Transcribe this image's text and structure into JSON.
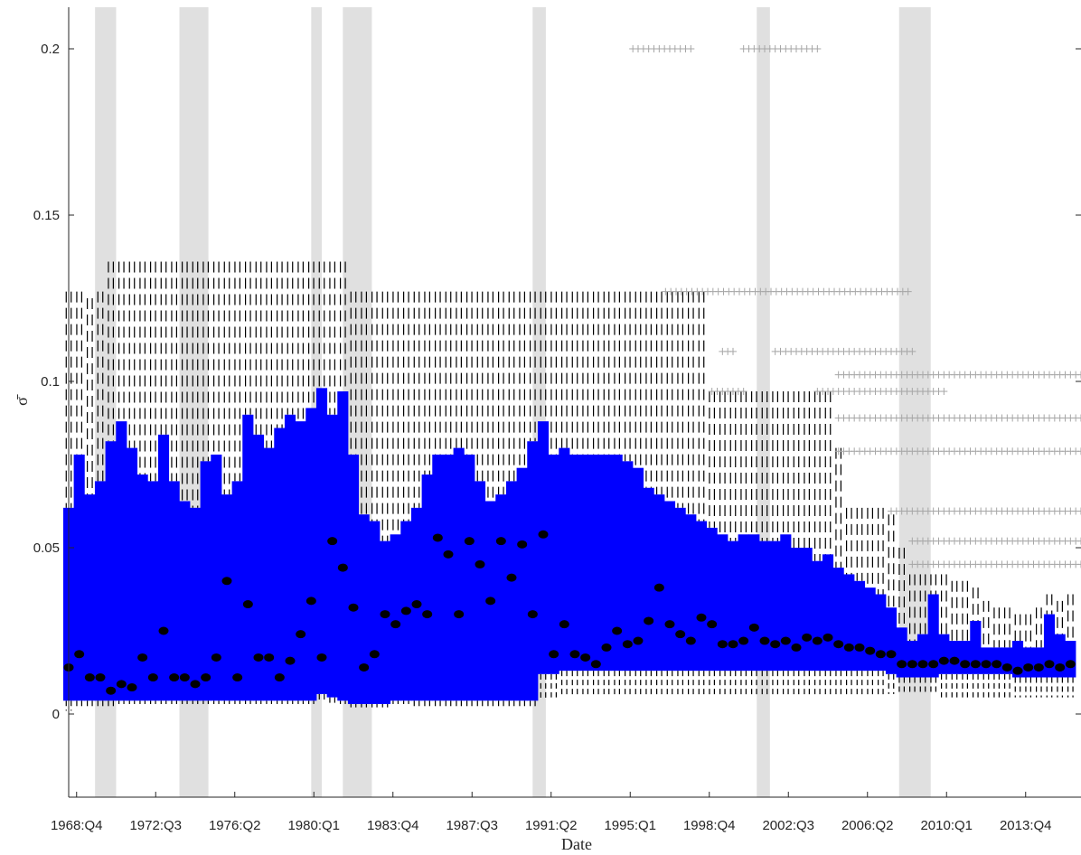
{
  "chart_data": {
    "type": "box",
    "xlabel": "Date",
    "ylabel": "σ̄",
    "ylim": [
      -0.025,
      0.2125
    ],
    "grid": false,
    "legend": "none",
    "colors": {
      "box_fill": "#0000FF",
      "median": "#000000",
      "whisker": "#000000",
      "outlier": "#A6A6A6",
      "recession": "#E0E0E0"
    },
    "x_range": [
      1968.5,
      2016.5
    ],
    "x_ticks": [
      {
        "label": "1968:Q4",
        "x": 1968.875
      },
      {
        "label": "1972:Q3",
        "x": 1972.625
      },
      {
        "label": "1976:Q2",
        "x": 1976.375
      },
      {
        "label": "1980:Q1",
        "x": 1980.125
      },
      {
        "label": "1983:Q4",
        "x": 1983.875
      },
      {
        "label": "1987:Q3",
        "x": 1987.625
      },
      {
        "label": "1991:Q2",
        "x": 1991.375
      },
      {
        "label": "1995:Q1",
        "x": 1995.125
      },
      {
        "label": "1998:Q4",
        "x": 1998.875
      },
      {
        "label": "2002:Q3",
        "x": 2002.625
      },
      {
        "label": "2006:Q2",
        "x": 2006.375
      },
      {
        "label": "2010:Q1",
        "x": 2010.125
      },
      {
        "label": "2013:Q4",
        "x": 2013.875
      }
    ],
    "y_ticks": [
      {
        "label": "0",
        "y": 0
      },
      {
        "label": "0.05",
        "y": 0.05
      },
      {
        "label": "0.1",
        "y": 0.1
      },
      {
        "label": "0.15",
        "y": 0.15
      },
      {
        "label": "0.2",
        "y": 0.2
      }
    ],
    "recessions": [
      [
        1969.75,
        1970.75
      ],
      [
        1973.75,
        1975.125
      ],
      [
        1980.0,
        1980.5
      ],
      [
        1981.5,
        1982.875
      ],
      [
        1990.5,
        1991.125
      ],
      [
        2001.125,
        2001.75
      ],
      [
        2007.875,
        2009.375
      ]
    ],
    "series_points": [
      {
        "x": 1968.5,
        "median": 0.014,
        "q1": 0.004,
        "q3": 0.062,
        "lo": 0.001,
        "hi": 0.127
      },
      {
        "x": 1969.0,
        "median": 0.018,
        "q1": 0.004,
        "q3": 0.078,
        "lo": 0.002,
        "hi": 0.127
      },
      {
        "x": 1969.5,
        "median": 0.011,
        "q1": 0.004,
        "q3": 0.066,
        "lo": 0.002,
        "hi": 0.125
      },
      {
        "x": 1970.0,
        "median": 0.011,
        "q1": 0.004,
        "q3": 0.07,
        "lo": 0.002,
        "hi": 0.127
      },
      {
        "x": 1970.5,
        "median": 0.007,
        "q1": 0.004,
        "q3": 0.082,
        "lo": 0.002,
        "hi": 0.136
      },
      {
        "x": 1971.0,
        "median": 0.009,
        "q1": 0.004,
        "q3": 0.088,
        "lo": 0.003,
        "hi": 0.136
      },
      {
        "x": 1971.5,
        "median": 0.008,
        "q1": 0.004,
        "q3": 0.08,
        "lo": 0.003,
        "hi": 0.136
      },
      {
        "x": 1972.0,
        "median": 0.017,
        "q1": 0.004,
        "q3": 0.072,
        "lo": 0.003,
        "hi": 0.136
      },
      {
        "x": 1972.5,
        "median": 0.011,
        "q1": 0.004,
        "q3": 0.07,
        "lo": 0.003,
        "hi": 0.136
      },
      {
        "x": 1973.0,
        "median": 0.025,
        "q1": 0.004,
        "q3": 0.084,
        "lo": 0.003,
        "hi": 0.136
      },
      {
        "x": 1973.5,
        "median": 0.011,
        "q1": 0.004,
        "q3": 0.07,
        "lo": 0.003,
        "hi": 0.136
      },
      {
        "x": 1974.0,
        "median": 0.011,
        "q1": 0.004,
        "q3": 0.064,
        "lo": 0.003,
        "hi": 0.136
      },
      {
        "x": 1974.5,
        "median": 0.009,
        "q1": 0.004,
        "q3": 0.062,
        "lo": 0.003,
        "hi": 0.136
      },
      {
        "x": 1975.0,
        "median": 0.011,
        "q1": 0.004,
        "q3": 0.076,
        "lo": 0.003,
        "hi": 0.136
      },
      {
        "x": 1975.5,
        "median": 0.017,
        "q1": 0.004,
        "q3": 0.078,
        "lo": 0.003,
        "hi": 0.136
      },
      {
        "x": 1976.0,
        "median": 0.04,
        "q1": 0.004,
        "q3": 0.066,
        "lo": 0.003,
        "hi": 0.136
      },
      {
        "x": 1976.5,
        "median": 0.011,
        "q1": 0.004,
        "q3": 0.07,
        "lo": 0.003,
        "hi": 0.136
      },
      {
        "x": 1977.0,
        "median": 0.033,
        "q1": 0.004,
        "q3": 0.09,
        "lo": 0.003,
        "hi": 0.136
      },
      {
        "x": 1977.5,
        "median": 0.017,
        "q1": 0.004,
        "q3": 0.084,
        "lo": 0.003,
        "hi": 0.136
      },
      {
        "x": 1978.0,
        "median": 0.017,
        "q1": 0.004,
        "q3": 0.08,
        "lo": 0.003,
        "hi": 0.136
      },
      {
        "x": 1978.5,
        "median": 0.011,
        "q1": 0.004,
        "q3": 0.086,
        "lo": 0.003,
        "hi": 0.136
      },
      {
        "x": 1979.0,
        "median": 0.016,
        "q1": 0.004,
        "q3": 0.09,
        "lo": 0.003,
        "hi": 0.136
      },
      {
        "x": 1979.5,
        "median": 0.024,
        "q1": 0.004,
        "q3": 0.088,
        "lo": 0.003,
        "hi": 0.136
      },
      {
        "x": 1980.0,
        "median": 0.034,
        "q1": 0.004,
        "q3": 0.092,
        "lo": 0.003,
        "hi": 0.136
      },
      {
        "x": 1980.5,
        "median": 0.017,
        "q1": 0.006,
        "q3": 0.098,
        "lo": 0.004,
        "hi": 0.136
      },
      {
        "x": 1981.0,
        "median": 0.052,
        "q1": 0.005,
        "q3": 0.09,
        "lo": 0.003,
        "hi": 0.136
      },
      {
        "x": 1981.5,
        "median": 0.044,
        "q1": 0.004,
        "q3": 0.097,
        "lo": 0.003,
        "hi": 0.136
      },
      {
        "x": 1982.0,
        "median": 0.032,
        "q1": 0.003,
        "q3": 0.078,
        "lo": 0.002,
        "hi": 0.127
      },
      {
        "x": 1982.5,
        "median": 0.014,
        "q1": 0.003,
        "q3": 0.06,
        "lo": 0.002,
        "hi": 0.127
      },
      {
        "x": 1983.0,
        "median": 0.018,
        "q1": 0.003,
        "q3": 0.058,
        "lo": 0.002,
        "hi": 0.127
      },
      {
        "x": 1983.5,
        "median": 0.03,
        "q1": 0.003,
        "q3": 0.052,
        "lo": 0.002,
        "hi": 0.127
      },
      {
        "x": 1984.0,
        "median": 0.027,
        "q1": 0.004,
        "q3": 0.054,
        "lo": 0.003,
        "hi": 0.127
      },
      {
        "x": 1984.5,
        "median": 0.031,
        "q1": 0.004,
        "q3": 0.058,
        "lo": 0.003,
        "hi": 0.127
      },
      {
        "x": 1985.0,
        "median": 0.033,
        "q1": 0.004,
        "q3": 0.062,
        "lo": 0.002,
        "hi": 0.127
      },
      {
        "x": 1985.5,
        "median": 0.03,
        "q1": 0.004,
        "q3": 0.072,
        "lo": 0.002,
        "hi": 0.127
      },
      {
        "x": 1986.0,
        "median": 0.053,
        "q1": 0.004,
        "q3": 0.078,
        "lo": 0.002,
        "hi": 0.127
      },
      {
        "x": 1986.5,
        "median": 0.048,
        "q1": 0.004,
        "q3": 0.078,
        "lo": 0.002,
        "hi": 0.127
      },
      {
        "x": 1987.0,
        "median": 0.03,
        "q1": 0.004,
        "q3": 0.08,
        "lo": 0.002,
        "hi": 0.127
      },
      {
        "x": 1987.5,
        "median": 0.052,
        "q1": 0.004,
        "q3": 0.078,
        "lo": 0.002,
        "hi": 0.127
      },
      {
        "x": 1988.0,
        "median": 0.045,
        "q1": 0.004,
        "q3": 0.07,
        "lo": 0.002,
        "hi": 0.127
      },
      {
        "x": 1988.5,
        "median": 0.034,
        "q1": 0.004,
        "q3": 0.064,
        "lo": 0.002,
        "hi": 0.127
      },
      {
        "x": 1989.0,
        "median": 0.052,
        "q1": 0.004,
        "q3": 0.066,
        "lo": 0.002,
        "hi": 0.127
      },
      {
        "x": 1989.5,
        "median": 0.041,
        "q1": 0.004,
        "q3": 0.07,
        "lo": 0.002,
        "hi": 0.127
      },
      {
        "x": 1990.0,
        "median": 0.051,
        "q1": 0.004,
        "q3": 0.074,
        "lo": 0.002,
        "hi": 0.127
      },
      {
        "x": 1990.5,
        "median": 0.03,
        "q1": 0.004,
        "q3": 0.082,
        "lo": 0.002,
        "hi": 0.127
      },
      {
        "x": 1991.0,
        "median": 0.054,
        "q1": 0.012,
        "q3": 0.088,
        "lo": 0.004,
        "hi": 0.127
      },
      {
        "x": 1991.5,
        "median": 0.018,
        "q1": 0.012,
        "q3": 0.078,
        "lo": 0.005,
        "hi": 0.127
      },
      {
        "x": 1992.0,
        "median": 0.027,
        "q1": 0.013,
        "q3": 0.08,
        "lo": 0.005,
        "hi": 0.127
      },
      {
        "x": 1992.5,
        "median": 0.018,
        "q1": 0.013,
        "q3": 0.078,
        "lo": 0.005,
        "hi": 0.127
      },
      {
        "x": 1993.0,
        "median": 0.017,
        "q1": 0.013,
        "q3": 0.078,
        "lo": 0.005,
        "hi": 0.127
      },
      {
        "x": 1993.5,
        "median": 0.015,
        "q1": 0.013,
        "q3": 0.078,
        "lo": 0.005,
        "hi": 0.127
      },
      {
        "x": 1994.0,
        "median": 0.02,
        "q1": 0.013,
        "q3": 0.078,
        "lo": 0.005,
        "hi": 0.127
      },
      {
        "x": 1994.5,
        "median": 0.025,
        "q1": 0.013,
        "q3": 0.078,
        "lo": 0.005,
        "hi": 0.127
      },
      {
        "x": 1995.0,
        "median": 0.021,
        "q1": 0.013,
        "q3": 0.076,
        "lo": 0.005,
        "hi": 0.127
      },
      {
        "x": 1995.5,
        "median": 0.022,
        "q1": 0.013,
        "q3": 0.074,
        "lo": 0.005,
        "hi": 0.127
      },
      {
        "x": 1996.0,
        "median": 0.028,
        "q1": 0.013,
        "q3": 0.068,
        "lo": 0.005,
        "hi": 0.127
      },
      {
        "x": 1996.5,
        "median": 0.038,
        "q1": 0.013,
        "q3": 0.066,
        "lo": 0.005,
        "hi": 0.127
      },
      {
        "x": 1997.0,
        "median": 0.027,
        "q1": 0.013,
        "q3": 0.064,
        "lo": 0.005,
        "hi": 0.127
      },
      {
        "x": 1997.5,
        "median": 0.024,
        "q1": 0.013,
        "q3": 0.062,
        "lo": 0.005,
        "hi": 0.127
      },
      {
        "x": 1998.0,
        "median": 0.022,
        "q1": 0.013,
        "q3": 0.06,
        "lo": 0.005,
        "hi": 0.127
      },
      {
        "x": 1998.5,
        "median": 0.029,
        "q1": 0.013,
        "q3": 0.058,
        "lo": 0.005,
        "hi": 0.127
      },
      {
        "x": 1999.0,
        "median": 0.027,
        "q1": 0.013,
        "q3": 0.056,
        "lo": 0.005,
        "hi": 0.097
      },
      {
        "x": 1999.5,
        "median": 0.021,
        "q1": 0.013,
        "q3": 0.054,
        "lo": 0.005,
        "hi": 0.097
      },
      {
        "x": 2000.0,
        "median": 0.021,
        "q1": 0.013,
        "q3": 0.052,
        "lo": 0.005,
        "hi": 0.097
      },
      {
        "x": 2000.5,
        "median": 0.022,
        "q1": 0.013,
        "q3": 0.054,
        "lo": 0.005,
        "hi": 0.097
      },
      {
        "x": 2001.0,
        "median": 0.026,
        "q1": 0.013,
        "q3": 0.054,
        "lo": 0.005,
        "hi": 0.097
      },
      {
        "x": 2001.5,
        "median": 0.022,
        "q1": 0.013,
        "q3": 0.052,
        "lo": 0.005,
        "hi": 0.097
      },
      {
        "x": 2002.0,
        "median": 0.021,
        "q1": 0.013,
        "q3": 0.052,
        "lo": 0.005,
        "hi": 0.097
      },
      {
        "x": 2002.5,
        "median": 0.022,
        "q1": 0.013,
        "q3": 0.054,
        "lo": 0.005,
        "hi": 0.097
      },
      {
        "x": 2003.0,
        "median": 0.02,
        "q1": 0.013,
        "q3": 0.05,
        "lo": 0.005,
        "hi": 0.097
      },
      {
        "x": 2003.5,
        "median": 0.023,
        "q1": 0.013,
        "q3": 0.05,
        "lo": 0.005,
        "hi": 0.097
      },
      {
        "x": 2004.0,
        "median": 0.022,
        "q1": 0.013,
        "q3": 0.046,
        "lo": 0.005,
        "hi": 0.097
      },
      {
        "x": 2004.5,
        "median": 0.023,
        "q1": 0.013,
        "q3": 0.048,
        "lo": 0.005,
        "hi": 0.097
      },
      {
        "x": 2005.0,
        "median": 0.021,
        "q1": 0.013,
        "q3": 0.044,
        "lo": 0.005,
        "hi": 0.08
      },
      {
        "x": 2005.5,
        "median": 0.02,
        "q1": 0.013,
        "q3": 0.042,
        "lo": 0.005,
        "hi": 0.062
      },
      {
        "x": 2006.0,
        "median": 0.02,
        "q1": 0.013,
        "q3": 0.04,
        "lo": 0.005,
        "hi": 0.062
      },
      {
        "x": 2006.5,
        "median": 0.019,
        "q1": 0.013,
        "q3": 0.038,
        "lo": 0.005,
        "hi": 0.062
      },
      {
        "x": 2007.0,
        "median": 0.018,
        "q1": 0.013,
        "q3": 0.036,
        "lo": 0.005,
        "hi": 0.062
      },
      {
        "x": 2007.5,
        "median": 0.018,
        "q1": 0.012,
        "q3": 0.032,
        "lo": 0.006,
        "hi": 0.06
      },
      {
        "x": 2008.0,
        "median": 0.015,
        "q1": 0.011,
        "q3": 0.026,
        "lo": 0.006,
        "hi": 0.05
      },
      {
        "x": 2008.5,
        "median": 0.015,
        "q1": 0.011,
        "q3": 0.022,
        "lo": 0.006,
        "hi": 0.042
      },
      {
        "x": 2009.0,
        "median": 0.015,
        "q1": 0.011,
        "q3": 0.024,
        "lo": 0.006,
        "hi": 0.042
      },
      {
        "x": 2009.5,
        "median": 0.015,
        "q1": 0.011,
        "q3": 0.036,
        "lo": 0.006,
        "hi": 0.042
      },
      {
        "x": 2010.0,
        "median": 0.016,
        "q1": 0.012,
        "q3": 0.024,
        "lo": 0.005,
        "hi": 0.042
      },
      {
        "x": 2010.5,
        "median": 0.016,
        "q1": 0.012,
        "q3": 0.022,
        "lo": 0.005,
        "hi": 0.04
      },
      {
        "x": 2011.0,
        "median": 0.015,
        "q1": 0.012,
        "q3": 0.022,
        "lo": 0.005,
        "hi": 0.04
      },
      {
        "x": 2011.5,
        "median": 0.015,
        "q1": 0.012,
        "q3": 0.028,
        "lo": 0.005,
        "hi": 0.038
      },
      {
        "x": 2012.0,
        "median": 0.015,
        "q1": 0.012,
        "q3": 0.02,
        "lo": 0.005,
        "hi": 0.034
      },
      {
        "x": 2012.5,
        "median": 0.015,
        "q1": 0.012,
        "q3": 0.02,
        "lo": 0.005,
        "hi": 0.032
      },
      {
        "x": 2013.0,
        "median": 0.014,
        "q1": 0.012,
        "q3": 0.02,
        "lo": 0.005,
        "hi": 0.032
      },
      {
        "x": 2013.5,
        "median": 0.013,
        "q1": 0.011,
        "q3": 0.022,
        "lo": 0.005,
        "hi": 0.03
      },
      {
        "x": 2014.0,
        "median": 0.014,
        "q1": 0.011,
        "q3": 0.02,
        "lo": 0.005,
        "hi": 0.03
      },
      {
        "x": 2014.5,
        "median": 0.014,
        "q1": 0.011,
        "q3": 0.02,
        "lo": 0.005,
        "hi": 0.032
      },
      {
        "x": 2015.0,
        "median": 0.015,
        "q1": 0.011,
        "q3": 0.03,
        "lo": 0.005,
        "hi": 0.036
      },
      {
        "x": 2015.5,
        "median": 0.014,
        "q1": 0.011,
        "q3": 0.024,
        "lo": 0.005,
        "hi": 0.034
      },
      {
        "x": 2016.0,
        "median": 0.015,
        "q1": 0.011,
        "q3": 0.022,
        "lo": 0.005,
        "hi": 0.036
      }
    ],
    "outliers": [
      {
        "x0": 1995.25,
        "x1": 1998.0,
        "y": 0.2
      },
      {
        "x0": 2000.5,
        "x1": 2004.0,
        "y": 0.2
      },
      {
        "x0": 1996.8,
        "x1": 2008.5,
        "y": 0.127
      },
      {
        "x0": 1999.5,
        "x1": 2000.0,
        "y": 0.109
      },
      {
        "x0": 2002.0,
        "x1": 2008.5,
        "y": 0.109
      },
      {
        "x0": 2005.0,
        "x1": 2016.5,
        "y": 0.102
      },
      {
        "x0": 1999.0,
        "x1": 2000.5,
        "y": 0.097
      },
      {
        "x0": 2004.0,
        "x1": 2010.0,
        "y": 0.097
      },
      {
        "x0": 2005.0,
        "x1": 2016.5,
        "y": 0.089
      },
      {
        "x0": 2005.0,
        "x1": 2016.5,
        "y": 0.079
      },
      {
        "x0": 2007.5,
        "x1": 2016.5,
        "y": 0.061
      },
      {
        "x0": 2008.5,
        "x1": 2016.5,
        "y": 0.052
      },
      {
        "x0": 2008.5,
        "x1": 2016.5,
        "y": 0.045
      }
    ]
  }
}
